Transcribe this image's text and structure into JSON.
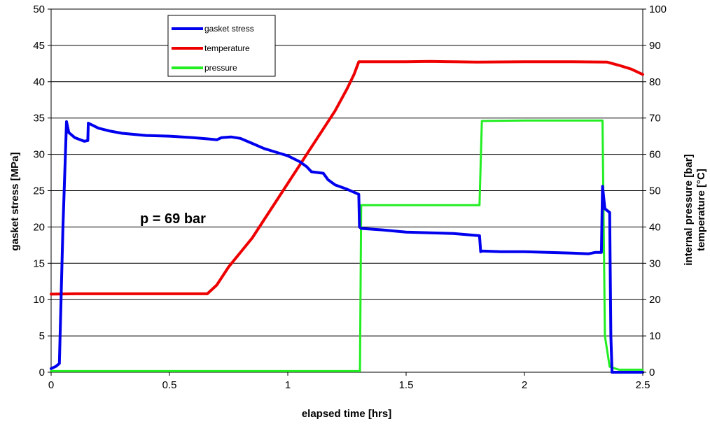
{
  "chart_data": {
    "type": "line",
    "x_label": "elapsed time [hrs]",
    "y_left_label": "gasket stress [MPa]",
    "y_right_label_line1": "internal pressure [bar]",
    "y_right_label_line2": "temperature [°C]",
    "xlim": [
      0,
      2.5
    ],
    "ylim_left": [
      0,
      50
    ],
    "ylim_right": [
      0,
      100
    ],
    "x_ticks": [
      "0",
      "0.5",
      "1",
      "1.5",
      "2",
      "2.5"
    ],
    "y_left_ticks": [
      "0",
      "5",
      "10",
      "15",
      "20",
      "25",
      "30",
      "35",
      "40",
      "45",
      "50"
    ],
    "y_right_ticks": [
      "0",
      "10",
      "20",
      "30",
      "40",
      "50",
      "60",
      "70",
      "80",
      "90",
      "100"
    ],
    "grid": "horizontal",
    "legend_position": "top-left",
    "annotation": "p = 69 bar",
    "series": [
      {
        "name": "gasket stress",
        "axis": "left",
        "color": "#0000ee",
        "points": [
          [
            0,
            0.5
          ],
          [
            0.02,
            0.8
          ],
          [
            0.035,
            1.2
          ],
          [
            0.05,
            20
          ],
          [
            0.065,
            34.5
          ],
          [
            0.075,
            33
          ],
          [
            0.1,
            32.3
          ],
          [
            0.14,
            31.8
          ],
          [
            0.155,
            31.9
          ],
          [
            0.157,
            34.3
          ],
          [
            0.2,
            33.6
          ],
          [
            0.25,
            33.2
          ],
          [
            0.3,
            32.9
          ],
          [
            0.4,
            32.6
          ],
          [
            0.5,
            32.5
          ],
          [
            0.6,
            32.3
          ],
          [
            0.67,
            32.1
          ],
          [
            0.7,
            32
          ],
          [
            0.72,
            32.3
          ],
          [
            0.76,
            32.4
          ],
          [
            0.8,
            32.2
          ],
          [
            0.85,
            31.5
          ],
          [
            0.9,
            30.8
          ],
          [
            0.95,
            30.3
          ],
          [
            1.0,
            29.8
          ],
          [
            1.05,
            29
          ],
          [
            1.08,
            28.3
          ],
          [
            1.1,
            27.6
          ],
          [
            1.15,
            27.4
          ],
          [
            1.17,
            26.5
          ],
          [
            1.2,
            25.8
          ],
          [
            1.25,
            25.2
          ],
          [
            1.3,
            24.5
          ],
          [
            1.303,
            20
          ],
          [
            1.31,
            19.8
          ],
          [
            1.4,
            19.6
          ],
          [
            1.5,
            19.3
          ],
          [
            1.6,
            19.2
          ],
          [
            1.7,
            19.1
          ],
          [
            1.81,
            18.8
          ],
          [
            1.815,
            16.6
          ],
          [
            1.82,
            16.7
          ],
          [
            1.9,
            16.6
          ],
          [
            2.0,
            16.6
          ],
          [
            2.1,
            16.5
          ],
          [
            2.2,
            16.4
          ],
          [
            2.27,
            16.3
          ],
          [
            2.3,
            16.5
          ],
          [
            2.325,
            16.5
          ],
          [
            2.33,
            25.6
          ],
          [
            2.34,
            22.5
          ],
          [
            2.36,
            22
          ],
          [
            2.365,
            5
          ],
          [
            2.37,
            0
          ],
          [
            2.5,
            0
          ]
        ]
      },
      {
        "name": "temperature",
        "axis": "right",
        "color": "#ee0000",
        "points": [
          [
            0,
            21.5
          ],
          [
            0.1,
            21.6
          ],
          [
            0.2,
            21.6
          ],
          [
            0.3,
            21.6
          ],
          [
            0.4,
            21.6
          ],
          [
            0.5,
            21.6
          ],
          [
            0.6,
            21.6
          ],
          [
            0.66,
            21.6
          ],
          [
            0.7,
            24
          ],
          [
            0.75,
            29
          ],
          [
            0.8,
            33
          ],
          [
            0.85,
            37
          ],
          [
            0.9,
            42
          ],
          [
            0.95,
            47
          ],
          [
            1.0,
            52
          ],
          [
            1.05,
            57
          ],
          [
            1.1,
            62
          ],
          [
            1.15,
            67
          ],
          [
            1.2,
            72
          ],
          [
            1.25,
            78
          ],
          [
            1.28,
            82
          ],
          [
            1.3,
            85.5
          ],
          [
            1.4,
            85.5
          ],
          [
            1.5,
            85.5
          ],
          [
            1.6,
            85.6
          ],
          [
            1.7,
            85.5
          ],
          [
            1.8,
            85.4
          ],
          [
            2.0,
            85.5
          ],
          [
            2.2,
            85.5
          ],
          [
            2.35,
            85.4
          ],
          [
            2.4,
            84.5
          ],
          [
            2.45,
            83.5
          ],
          [
            2.5,
            82
          ]
        ]
      },
      {
        "name": "pressure",
        "axis": "right",
        "color": "#22ee22",
        "points": [
          [
            0,
            0.3
          ],
          [
            0.5,
            0.3
          ],
          [
            1.0,
            0.3
          ],
          [
            1.305,
            0.3
          ],
          [
            1.31,
            46
          ],
          [
            1.81,
            46
          ],
          [
            1.82,
            69.2
          ],
          [
            2.0,
            69.3
          ],
          [
            2.33,
            69.3
          ],
          [
            2.34,
            10
          ],
          [
            2.36,
            1.5
          ],
          [
            2.4,
            0.7
          ],
          [
            2.5,
            0.7
          ]
        ]
      }
    ]
  }
}
